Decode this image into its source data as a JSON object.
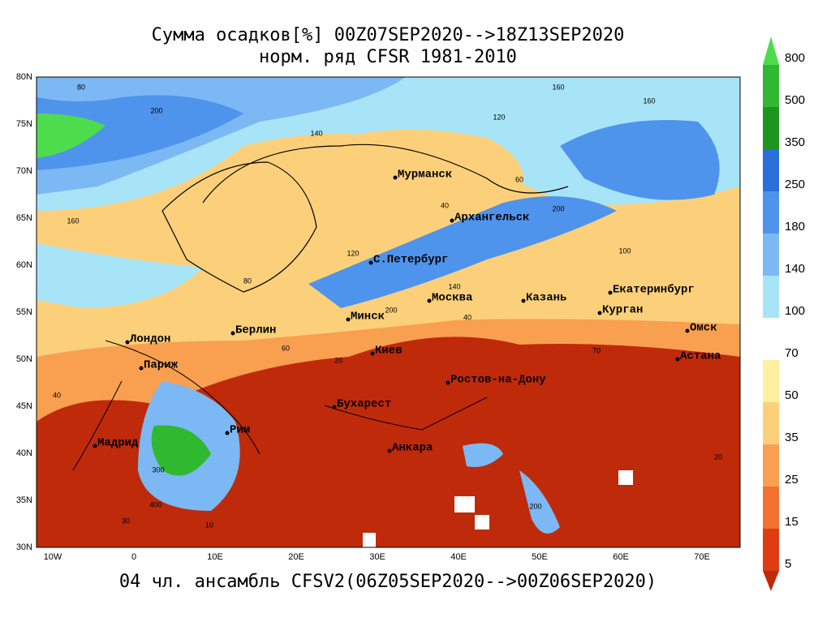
{
  "title": [
    "Сумма осадков[%] 00Z07SEP2020-->18Z13SEP2020",
    "норм. ряд CFSR 1981-2010"
  ],
  "footer": "04 чл. ансамбль CFSV2(06Z05SEP2020-->00Z06SEP2020)",
  "lat_labels": [
    "80N",
    "75N",
    "70N",
    "65N",
    "60N",
    "55N",
    "50N",
    "45N",
    "40N",
    "35N",
    "30N"
  ],
  "lon_labels": [
    "10W",
    "0",
    "10E",
    "20E",
    "30E",
    "40E",
    "50E",
    "60E",
    "70E"
  ],
  "colorbar": {
    "labels": [
      "800",
      "500",
      "350",
      "250",
      "180",
      "140",
      "100",
      "70",
      "50",
      "35",
      "25",
      "15",
      "5"
    ],
    "colors": [
      "#4cdc4c",
      "#30b830",
      "#1e961e",
      "#2a6edc",
      "#4e94ec",
      "#7cb8f4",
      "#a8e4f8",
      "#ffffff",
      "#fff0a0",
      "#fcd07a",
      "#f8a050",
      "#f27030",
      "#e03c14",
      "#bf2a0a"
    ]
  },
  "cities": [
    "Мурманск",
    "Архангельск",
    "С.Петербург",
    "Москва",
    "Казань",
    "Екатеринбург",
    "Курган",
    "Омск",
    "Астана",
    "Минск",
    "Киев",
    "Берлин",
    "Лондон",
    "Париж",
    "Ростов-на-Дону",
    "Бухарест",
    "Рим",
    "Мадрид",
    "Анкара"
  ],
  "contour_labels": [
    "80",
    "200",
    "160",
    "140",
    "120",
    "160",
    "160",
    "200",
    "40",
    "60",
    "100",
    "140",
    "40",
    "200",
    "80",
    "120",
    "60",
    "20",
    "40",
    "300",
    "400",
    "200",
    "30",
    "10",
    "70",
    "20"
  ]
}
